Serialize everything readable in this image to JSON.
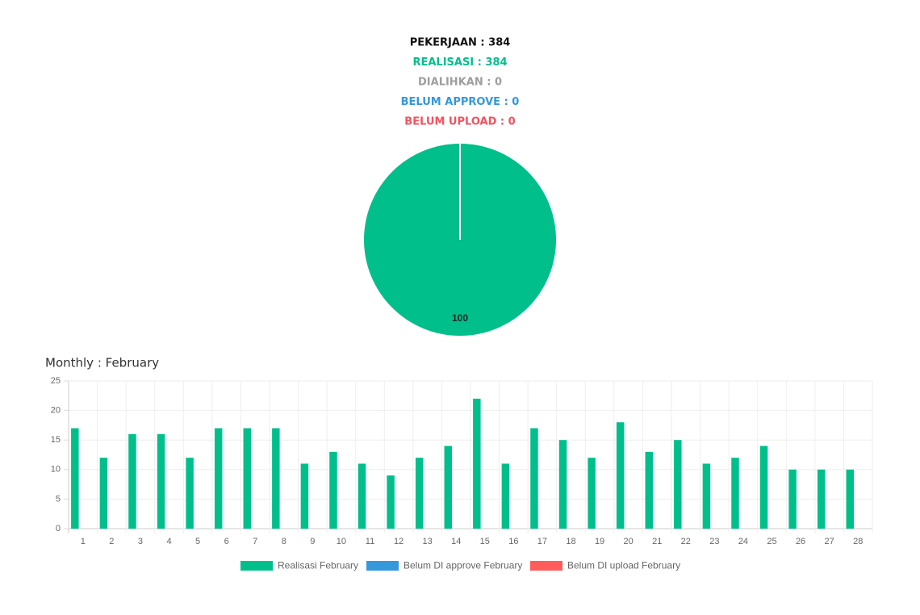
{
  "summary": [
    {
      "label": "PEKERJAAN : 384",
      "color": "#111111"
    },
    {
      "label": "REALISASI : 384",
      "color": "#00bf8a"
    },
    {
      "label": "DIALIHKAN : 0",
      "color": "#9e9e9e"
    },
    {
      "label": "BELUM APPROVE : 0",
      "color": "#3498db"
    },
    {
      "label": "BELUM UPLOAD : 0",
      "color": "#f5515f"
    }
  ],
  "chart_data": [
    {
      "type": "pie",
      "values": [
        100
      ],
      "colors": [
        "#00bf8a"
      ]
    },
    {
      "type": "bar",
      "title": "Monthly : February",
      "categories": [
        "1",
        "2",
        "3",
        "4",
        "5",
        "6",
        "7",
        "8",
        "9",
        "10",
        "11",
        "12",
        "13",
        "14",
        "15",
        "16",
        "17",
        "18",
        "19",
        "20",
        "21",
        "22",
        "23",
        "24",
        "25",
        "26",
        "27",
        "28"
      ],
      "series": [
        {
          "name": "Realisasi February",
          "color": "#00bf8a",
          "values": [
            17,
            12,
            16,
            16,
            12,
            17,
            17,
            17,
            11,
            13,
            11,
            9,
            12,
            14,
            22,
            11,
            17,
            15,
            12,
            18,
            13,
            15,
            11,
            12,
            14,
            10,
            10,
            10
          ]
        },
        {
          "name": "Belum DI approve February",
          "color": "#3498db",
          "values": [
            0,
            0,
            0,
            0,
            0,
            0,
            0,
            0,
            0,
            0,
            0,
            0,
            0,
            0,
            0,
            0,
            0,
            0,
            0,
            0,
            0,
            0,
            0,
            0,
            0,
            0,
            0,
            0
          ]
        },
        {
          "name": "Belum DI upload February",
          "color": "#ff5c5c",
          "values": [
            0,
            0,
            0,
            0,
            0,
            0,
            0,
            0,
            0,
            0,
            0,
            0,
            0,
            0,
            0,
            0,
            0,
            0,
            0,
            0,
            0,
            0,
            0,
            0,
            0,
            0,
            0,
            0
          ]
        }
      ],
      "ylim": [
        0,
        25
      ],
      "yticks": [
        0,
        5,
        10,
        15,
        20,
        25
      ],
      "grid": true
    }
  ]
}
